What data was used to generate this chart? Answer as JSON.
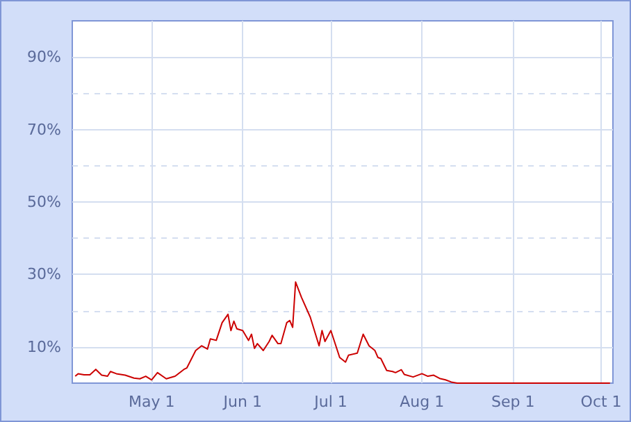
{
  "chart_data": {
    "type": "line",
    "x": [
      "--04-05",
      "--04-06",
      "--04-08",
      "--04-10",
      "--04-12",
      "--04-14",
      "--04-16",
      "--04-17",
      "--04-19",
      "--04-22",
      "--04-25",
      "--04-27",
      "--04-29",
      "--05-01",
      "--05-03",
      "--05-06",
      "--05-09",
      "--05-12",
      "--05-13",
      "--05-16",
      "--05-18",
      "--05-20",
      "--05-21",
      "--05-23",
      "--05-25",
      "--05-27",
      "--05-28",
      "--05-29",
      "--05-30",
      "--06-01",
      "--06-03",
      "--06-04",
      "--06-05",
      "--06-06",
      "--06-08",
      "--06-10",
      "--06-11",
      "--06-13",
      "--06-14",
      "--06-16",
      "--06-17",
      "--06-18",
      "--06-19",
      "--06-21",
      "--06-24",
      "--06-27",
      "--06-28",
      "--06-29",
      "--07-01",
      "--07-04",
      "--07-06",
      "--07-07",
      "--07-10",
      "--07-12",
      "--07-14",
      "--07-16",
      "--07-17",
      "--07-18",
      "--07-20",
      "--07-22",
      "--07-23",
      "--07-25",
      "--07-26",
      "--07-29",
      "--08-01",
      "--08-03",
      "--08-05",
      "--08-07",
      "--08-09",
      "--08-11",
      "--08-13",
      "--10-04"
    ],
    "series": [
      {
        "color": "#cc0000",
        "values": [
          1.9,
          2.6,
          2.3,
          2.3,
          3.8,
          2.2,
          1.9,
          3.2,
          2.6,
          2.2,
          1.4,
          1.2,
          1.9,
          0.9,
          2.9,
          1.2,
          1.9,
          3.8,
          4.2,
          9.0,
          10.3,
          9.4,
          12.2,
          11.8,
          16.7,
          19.0,
          14.5,
          17.1,
          15.0,
          14.5,
          11.8,
          13.5,
          9.6,
          10.9,
          9.0,
          11.5,
          13.2,
          10.9,
          10.9,
          16.7,
          17.3,
          15.4,
          27.9,
          23.7,
          18.2,
          10.3,
          14.5,
          11.5,
          14.5,
          7.1,
          5.8,
          7.7,
          8.3,
          13.5,
          10.3,
          9.0,
          7.1,
          6.8,
          3.5,
          3.2,
          2.9,
          3.7,
          2.4,
          1.7,
          2.6,
          1.9,
          2.2,
          1.3,
          0.9,
          0.3,
          0,
          0
        ]
      }
    ],
    "xlim": [
      "--04-04",
      "--10-05"
    ],
    "xticks": [
      {
        "value": "--05-01",
        "label": "May 1"
      },
      {
        "value": "--06-01",
        "label": "Jun 1"
      },
      {
        "value": "--07-01",
        "label": "Jul 1"
      },
      {
        "value": "--08-01",
        "label": "Aug 1"
      },
      {
        "value": "--09-01",
        "label": "Sep 1"
      },
      {
        "value": "--10-01",
        "label": "Oct 1"
      }
    ],
    "ylim": [
      0,
      100
    ],
    "yticks": [
      {
        "value": 10,
        "label": "10%"
      },
      {
        "value": 20,
        "label": null
      },
      {
        "value": 30,
        "label": "30%"
      },
      {
        "value": 40,
        "label": null
      },
      {
        "value": 50,
        "label": "50%"
      },
      {
        "value": 60,
        "label": null
      },
      {
        "value": 70,
        "label": "70%"
      },
      {
        "value": 80,
        "label": null
      },
      {
        "value": 90,
        "label": "90%"
      }
    ],
    "grid": true,
    "marker": "none"
  }
}
